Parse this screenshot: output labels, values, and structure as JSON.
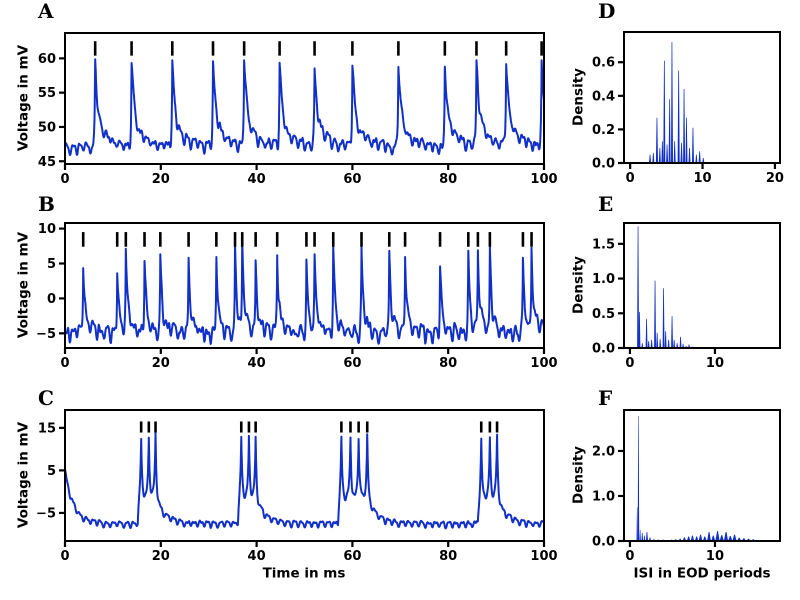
{
  "figure": {
    "background": "#ffffff",
    "trace_color": "#1130c8",
    "bar_color": "#1130c8",
    "frame_color": "#000000",
    "event_marker_color": "#000000"
  },
  "chart_data": [
    {
      "id": "A",
      "label": "A",
      "type": "line",
      "ylabel": "Voltage in mV",
      "xlim": [
        0,
        100
      ],
      "ylim": [
        44.6,
        63.7
      ],
      "xticks": {
        "values": [
          0,
          20,
          40,
          60,
          80,
          100
        ],
        "labels": [
          "0",
          "20",
          "40",
          "60",
          "80",
          "100"
        ]
      },
      "yticks": {
        "values": [
          60,
          55,
          50,
          45
        ],
        "labels": [
          "60",
          "55",
          "50",
          "45"
        ]
      },
      "spike_times_ms": [
        6.3,
        13.9,
        22.4,
        30.9,
        37.4,
        44.8,
        52.1,
        60.0,
        69.6,
        79.3,
        85.9,
        92.1,
        99.5
      ],
      "event_marker_y_mv": [
        60.4,
        62.5
      ],
      "trace_model": {
        "baseline_mv": 47.0,
        "eod_ripple_mv": 0.55,
        "eod_period_ms": 1.4,
        "noise_sd_mv": 0.32,
        "spike": {
          "amp_min": 11.2,
          "amp_max": 13.2,
          "tau_rise_ms": 0.12,
          "tau_fall_ms": 0.4,
          "shoulder_mv": 4.4,
          "shoulder_tau_ms": 2.4
        }
      },
      "seed": 11
    },
    {
      "id": "B",
      "label": "B",
      "type": "line",
      "ylabel": "Voltage in mV",
      "xlim": [
        0,
        100
      ],
      "ylim": [
        -7.1,
        10.8
      ],
      "xticks": {
        "values": [
          0,
          20,
          40,
          60,
          80,
          100
        ],
        "labels": [
          "0",
          "20",
          "40",
          "60",
          "80",
          "100"
        ]
      },
      "yticks": {
        "values": [
          10,
          5,
          0,
          -5
        ],
        "labels": [
          "10",
          "5",
          "0",
          "−5"
        ]
      },
      "spike_times_ms": [
        3.8,
        10.9,
        12.7,
        16.6,
        19.9,
        25.8,
        31.6,
        35.5,
        37.0,
        39.8,
        44.3,
        50.4,
        52.1,
        56.0,
        61.9,
        67.7,
        71.0,
        78.3,
        84.2,
        86.2,
        88.7,
        95.6,
        97.4
      ],
      "event_marker_y_mv": [
        7.4,
        9.5
      ],
      "trace_model": {
        "baseline_mv": -5.0,
        "eod_ripple_mv": 0.7,
        "eod_period_ms": 1.4,
        "noise_sd_mv": 0.45,
        "spike": {
          "amp_min": 9.6,
          "amp_max": 12.2,
          "tau_rise_ms": 0.1,
          "tau_fall_ms": 0.33,
          "shoulder_mv": 2.0,
          "shoulder_tau_ms": 1.5
        }
      },
      "seed": 23
    },
    {
      "id": "C",
      "label": "C",
      "type": "line",
      "ylabel": "Voltage in mV",
      "xlabel": "Time in ms",
      "xlim": [
        0,
        100
      ],
      "ylim": [
        -11.6,
        19.2
      ],
      "xticks": {
        "values": [
          0,
          20,
          40,
          60,
          80,
          100
        ],
        "labels": [
          "0",
          "20",
          "40",
          "60",
          "80",
          "100"
        ]
      },
      "yticks": {
        "values": [
          15,
          5,
          -5
        ],
        "labels": [
          "15",
          "5",
          "−5"
        ]
      },
      "bursts_ms": [
        [
          15.9,
          17.5,
          18.9
        ],
        [
          36.8,
          38.4,
          39.8
        ],
        [
          57.7,
          59.6,
          61.3,
          63.1
        ],
        [
          86.9,
          88.7,
          90.2
        ]
      ],
      "event_marker_y_mv": [
        13.9,
        16.5
      ],
      "trace_model": {
        "baseline_mv": -7.6,
        "eod_ripple_mv": 0.55,
        "eod_period_ms": 1.4,
        "noise_sd_mv": 0.18,
        "initial": {
          "amp_mv": 12.6,
          "tau_ms": 1.8
        },
        "spike": {
          "symmetric": true,
          "amp": 14.3,
          "amp_jitter": 0.6,
          "tau_ms": 0.21,
          "plateau_mv": 6.2,
          "plateau_rise_ms": 0.25,
          "plateau_decay_ms": 2.0
        }
      },
      "seed": 7
    },
    {
      "id": "D",
      "label": "D",
      "type": "bar",
      "ylabel": "Density",
      "xlim": [
        -0.85,
        20.7
      ],
      "ylim": [
        0,
        0.78
      ],
      "xticks": {
        "values": [
          0,
          10,
          20
        ],
        "labels": [
          "0",
          "10",
          "20"
        ]
      },
      "yticks": {
        "values": [
          0.6,
          0.4,
          0.2,
          0.0
        ],
        "labels": [
          "0.6",
          "0.4",
          "0.2",
          "0.0"
        ]
      },
      "default_bar_width": 0.28,
      "peaks_x_h_w": [
        [
          2.75,
          0.05
        ],
        [
          3.2,
          0.06
        ],
        [
          3.7,
          0.27
        ],
        [
          4.1,
          0.09
        ],
        [
          4.45,
          0.13
        ],
        [
          4.72,
          0.61
        ],
        [
          5.1,
          0.11
        ],
        [
          5.45,
          0.38
        ],
        [
          5.78,
          0.72
        ],
        [
          6.15,
          0.13
        ],
        [
          6.7,
          0.55
        ],
        [
          7.1,
          0.12
        ],
        [
          7.45,
          0.44
        ],
        [
          7.78,
          0.27
        ],
        [
          8.2,
          0.09
        ],
        [
          8.68,
          0.21
        ],
        [
          9.15,
          0.05
        ],
        [
          9.6,
          0.07
        ],
        [
          10.1,
          0.03
        ]
      ]
    },
    {
      "id": "E",
      "label": "E",
      "type": "bar",
      "ylabel": "Density",
      "xlim": [
        -0.7,
        17.65
      ],
      "ylim": [
        0,
        1.8
      ],
      "xticks": {
        "values": [
          0,
          10
        ],
        "labels": [
          "0",
          "10"
        ]
      },
      "yticks": {
        "values": [
          1.5,
          1.0,
          0.5,
          0.0
        ],
        "labels": [
          "1.5",
          "1.0",
          "0.5",
          "0.0"
        ]
      },
      "default_bar_width": 0.22,
      "peaks_x_h_w": [
        [
          0.95,
          1.75
        ],
        [
          1.12,
          0.52
        ],
        [
          1.45,
          0.07
        ],
        [
          1.95,
          0.42
        ],
        [
          2.2,
          0.1
        ],
        [
          2.55,
          0.12
        ],
        [
          2.95,
          0.97
        ],
        [
          3.2,
          0.22
        ],
        [
          3.55,
          0.13
        ],
        [
          3.95,
          0.86
        ],
        [
          4.2,
          0.24
        ],
        [
          4.55,
          0.12
        ],
        [
          4.95,
          0.46
        ],
        [
          5.2,
          0.12
        ],
        [
          5.55,
          0.07
        ],
        [
          5.95,
          0.16
        ],
        [
          6.25,
          0.06
        ],
        [
          6.6,
          0.03
        ],
        [
          6.95,
          0.05
        ],
        [
          7.4,
          0.02
        ]
      ]
    },
    {
      "id": "F",
      "label": "F",
      "type": "bar",
      "ylabel": "Density",
      "xlabel": "ISI in EOD periods",
      "xlim": [
        -0.7,
        17.65
      ],
      "ylim": [
        0,
        2.91
      ],
      "xticks": {
        "values": [
          0,
          10
        ],
        "labels": [
          "0",
          "10"
        ]
      },
      "yticks": {
        "values": [
          2.0,
          1.0,
          0.0
        ],
        "labels": [
          "2.0",
          "1.0",
          "0.0"
        ]
      },
      "default_bar_width": 0.18,
      "peaks_x_h_w": [
        [
          0.85,
          0.75,
          0.15
        ],
        [
          1.0,
          2.78,
          0.18
        ],
        [
          1.2,
          0.25,
          0.15
        ],
        [
          1.45,
          0.18,
          0.2
        ],
        [
          1.7,
          0.12,
          0.2
        ],
        [
          2.0,
          0.2,
          0.25
        ],
        [
          2.35,
          0.08,
          0.25
        ],
        [
          2.8,
          0.04,
          0.3
        ],
        [
          3.3,
          0.03,
          0.3
        ],
        [
          3.9,
          0.03,
          0.3
        ],
        [
          4.4,
          0.02,
          0.3
        ],
        [
          4.9,
          0.03,
          0.3
        ],
        [
          5.4,
          0.04,
          0.35
        ],
        [
          5.9,
          0.05,
          0.35
        ],
        [
          6.4,
          0.08,
          0.4
        ],
        [
          6.9,
          0.1,
          0.4
        ],
        [
          7.35,
          0.12,
          0.4
        ],
        [
          7.85,
          0.1,
          0.4
        ],
        [
          8.3,
          0.14,
          0.45
        ],
        [
          8.8,
          0.1,
          0.45
        ],
        [
          9.3,
          0.2,
          0.45
        ],
        [
          9.8,
          0.12,
          0.45
        ],
        [
          10.3,
          0.22,
          0.5
        ],
        [
          10.8,
          0.13,
          0.5
        ],
        [
          11.3,
          0.2,
          0.5
        ],
        [
          11.8,
          0.11,
          0.5
        ],
        [
          12.3,
          0.14,
          0.5
        ],
        [
          12.85,
          0.07,
          0.5
        ],
        [
          13.4,
          0.06,
          0.5
        ],
        [
          13.95,
          0.05,
          0.5
        ],
        [
          14.5,
          0.04,
          0.45
        ],
        [
          15.05,
          0.02,
          0.4
        ]
      ]
    }
  ]
}
